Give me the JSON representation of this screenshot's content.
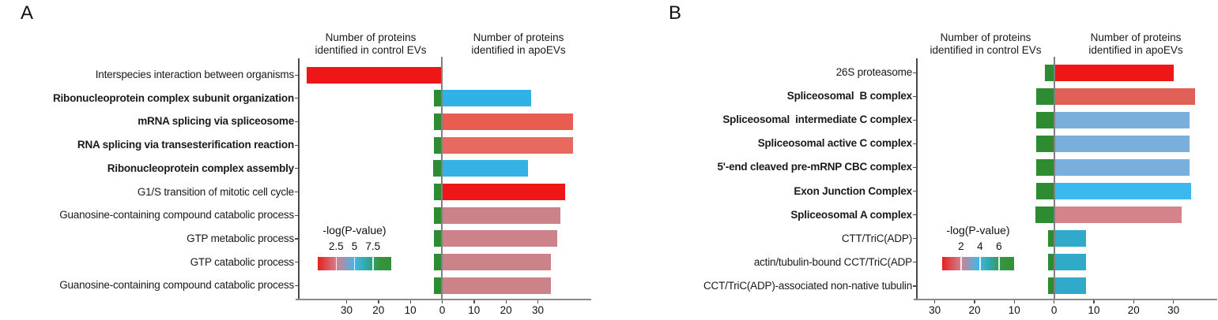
{
  "figure_type": "diverging horizontal bar charts (GO / complex enrichment, control EVs vs apoEVs)",
  "chart_data": [
    {
      "panel_label": "A",
      "type": "bar",
      "orientation": "diverging-horizontal",
      "header_control": [
        "Number of proteins",
        "identified in control EVs"
      ],
      "header_apo": [
        "Number of proteins",
        "identified in apoEVs"
      ],
      "xlim": [
        -45,
        46
      ],
      "xtick_values": [
        -30,
        -20,
        -10,
        0,
        10,
        20,
        30
      ],
      "xtick_labels": [
        "30",
        "20",
        "10",
        "0",
        "10",
        "20",
        "30"
      ],
      "legend": {
        "title": "-log(P-value)",
        "tick_labels": [
          "2.5",
          "5",
          "7.5"
        ],
        "tick_values": [
          2.5,
          5,
          7.5
        ],
        "value_range": [
          0,
          10
        ],
        "gradient_stops": [
          "#e7201f 0%",
          "#d2808f 26%",
          "#45b5ea 50%",
          "#2ea9a9 66%",
          "#36953e 84%",
          "#2f9138 100%"
        ]
      },
      "rows": [
        {
          "category": "Interspecies interaction between organisms",
          "bold": false,
          "control_value": 42.5,
          "control_color": "#ee1616",
          "apo_value": 0,
          "apo_color": null
        },
        {
          "category": "Ribonucleoprotein complex subunit organization",
          "bold": true,
          "control_value": 2.7,
          "control_color": "#2d8b31",
          "apo_value": 28,
          "apo_color": "#30b2e8"
        },
        {
          "category": "mRNA splicing via spliceosome",
          "bold": true,
          "control_value": 2.7,
          "control_color": "#2d8b31",
          "apo_value": 41,
          "apo_color": "#e85c52"
        },
        {
          "category": "RNA splicing via transesterification reaction",
          "bold": true,
          "control_value": 2.7,
          "control_color": "#2d8b31",
          "apo_value": 41,
          "apo_color": "#e66a60"
        },
        {
          "category": "Ribonucleoprotein complex assembly",
          "bold": true,
          "control_value": 2.9,
          "control_color": "#2d8b31",
          "apo_value": 27,
          "apo_color": "#35b2e5"
        },
        {
          "category": "G1/S transition of mitotic cell cycle",
          "bold": false,
          "control_value": 2.7,
          "control_color": "#2d8b31",
          "apo_value": 38.5,
          "apo_color": "#ee1616"
        },
        {
          "category": "Guanosine-containing compound catabolic process",
          "bold": false,
          "control_value": 2.7,
          "control_color": "#2d8b31",
          "apo_value": 37,
          "apo_color": "#cb8289"
        },
        {
          "category": "GTP metabolic process",
          "bold": false,
          "control_value": 2.7,
          "control_color": "#2d8b31",
          "apo_value": 36,
          "apo_color": "#cb8289"
        },
        {
          "category": "GTP catabolic process",
          "bold": false,
          "control_value": 2.7,
          "control_color": "#2d8b31",
          "apo_value": 34,
          "apo_color": "#cb8289"
        },
        {
          "category": "Guanosine-containing compound catabolic process",
          "bold": false,
          "control_value": 2.7,
          "control_color": "#2d8b31",
          "apo_value": 34,
          "apo_color": "#cb8289"
        }
      ]
    },
    {
      "panel_label": "B",
      "type": "bar",
      "orientation": "diverging-horizontal",
      "header_control": [
        "Number of proteins",
        "identified in control EVs"
      ],
      "header_apo": [
        "Number of proteins",
        "identified in apoEVs"
      ],
      "xlim": [
        -34.5,
        41
      ],
      "xtick_values": [
        -30,
        -20,
        -10,
        0,
        10,
        20,
        30
      ],
      "xtick_labels": [
        "30",
        "20",
        "10",
        "0",
        "10",
        "20",
        "30"
      ],
      "legend": {
        "title": "-log(P-value)",
        "tick_labels": [
          "2",
          "4",
          "6"
        ],
        "tick_values": [
          2,
          4,
          6
        ],
        "value_range": [
          0,
          7.6
        ],
        "gradient_stops": [
          "#e7201f 0%",
          "#d2808f 26%",
          "#45b5ea 50%",
          "#2ea9a9 66%",
          "#36953e 84%",
          "#2f9138 100%"
        ]
      },
      "rows": [
        {
          "category": "26S proteasome",
          "bold": false,
          "control_value": 2.4,
          "control_color": "#2d8b31",
          "apo_value": 30,
          "apo_color": "#ee1616"
        },
        {
          "category": "Spliceosomal  B complex",
          "bold": true,
          "control_value": 4.5,
          "control_color": "#2d8b31",
          "apo_value": 35.5,
          "apo_color": "#e06158"
        },
        {
          "category": "Spliceosomal  intermediate C complex",
          "bold": true,
          "control_value": 4.5,
          "control_color": "#2d8b31",
          "apo_value": 34,
          "apo_color": "#7aaedb"
        },
        {
          "category": "Spliceosomal active C complex",
          "bold": true,
          "control_value": 4.5,
          "control_color": "#2d8b31",
          "apo_value": 34,
          "apo_color": "#7aaedb"
        },
        {
          "category": "5'-end cleaved pre-mRNP CBC complex",
          "bold": true,
          "control_value": 4.5,
          "control_color": "#2d8b31",
          "apo_value": 34,
          "apo_color": "#7aaedb"
        },
        {
          "category": "Exon Junction Complex",
          "bold": true,
          "control_value": 4.5,
          "control_color": "#2d8b31",
          "apo_value": 34.5,
          "apo_color": "#3bb9ef"
        },
        {
          "category": "Spliceosomal A complex",
          "bold": true,
          "control_value": 4.7,
          "control_color": "#2d8b31",
          "apo_value": 32,
          "apo_color": "#d4838a"
        },
        {
          "category": "CTT/TriC(ADP)",
          "bold": false,
          "control_value": 1.5,
          "control_color": "#2d8b31",
          "apo_value": 8,
          "apo_color": "#31aac9"
        },
        {
          "category": "actin/tubulin-bound CCT/TriC(ADP",
          "bold": false,
          "control_value": 1.5,
          "control_color": "#2d8b31",
          "apo_value": 8,
          "apo_color": "#31aac9"
        },
        {
          "category": "CCT/TriC(ADP)-associated non-native tubulin",
          "bold": false,
          "control_value": 1.5,
          "control_color": "#2d8b31",
          "apo_value": 8,
          "apo_color": "#31aac9"
        }
      ]
    }
  ],
  "style_colors": {
    "zero_line": "#808080",
    "x_axis_line": "#8a8a8a",
    "y_axis_line": "#4a4a4a",
    "tick_mark": "#4d4d4d",
    "text": "#1a1a1a"
  }
}
